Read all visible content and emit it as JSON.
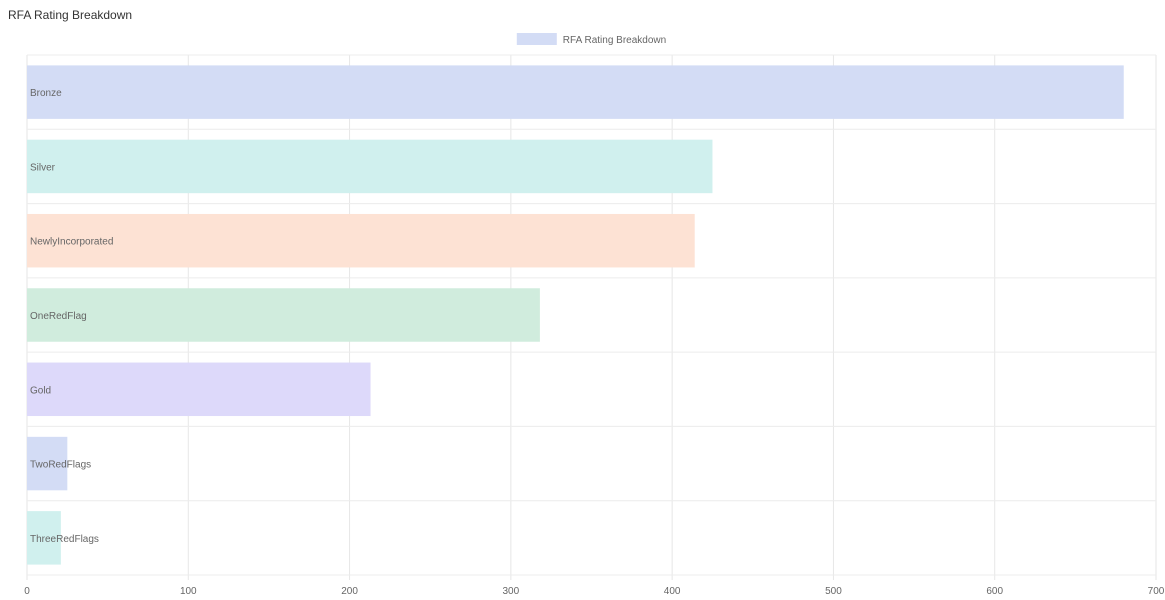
{
  "page": {
    "title": "RFA Rating Breakdown"
  },
  "chart_data": {
    "type": "bar",
    "orientation": "horizontal",
    "title": "",
    "xlabel": "",
    "ylabel": "",
    "legend": {
      "placement": "top-center",
      "entries": [
        "RFA Rating Breakdown"
      ],
      "swatch_color": "#d3dcf5"
    },
    "xlim": [
      0,
      700
    ],
    "x_ticks": [
      0,
      100,
      200,
      300,
      400,
      500,
      600,
      700
    ],
    "grid": true,
    "categories": [
      "Bronze",
      "Silver",
      "NewlyIncorporated",
      "OneRedFlag",
      "Gold",
      "TwoRedFlags",
      "ThreeRedFlags"
    ],
    "series": [
      {
        "name": "RFA Rating Breakdown",
        "values": [
          680,
          425,
          414,
          318,
          213,
          25,
          21
        ]
      }
    ],
    "bar_colors": [
      "#d3dcf5",
      "#d0f0ee",
      "#fde2d4",
      "#d0ecdd",
      "#ddd9fa",
      "#d3dcf5",
      "#d0f0ee"
    ]
  }
}
